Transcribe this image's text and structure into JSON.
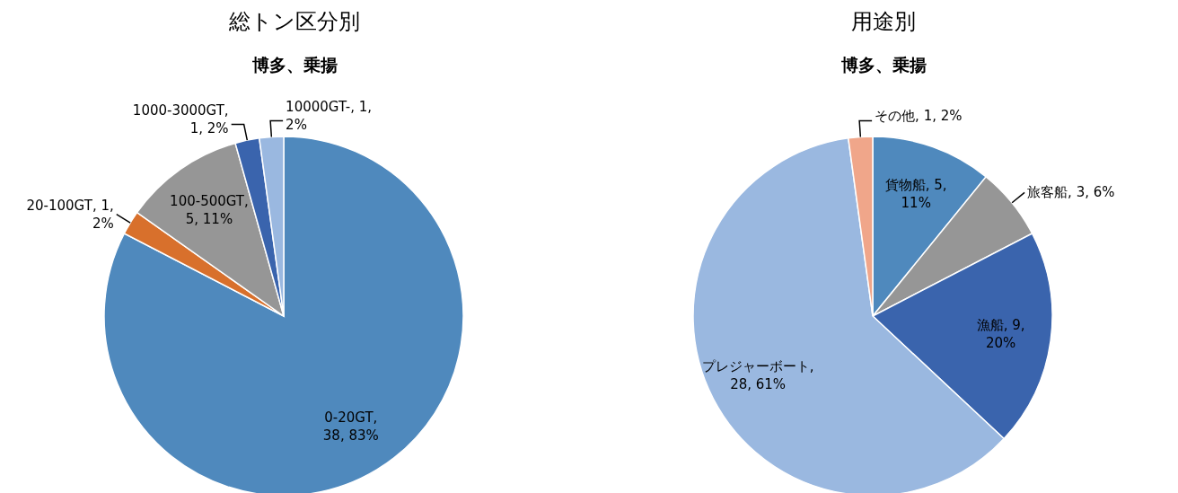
{
  "chart_data": [
    {
      "type": "pie",
      "title": "総トン区分別",
      "subtitle": "博多、乗揚",
      "categories": [
        "0-20GT",
        "20-100GT",
        "100-500GT",
        "1000-3000GT",
        "10000GT-"
      ],
      "values": [
        38,
        1,
        5,
        1,
        1
      ],
      "value_labels": [
        ", 38, 83%",
        ", 1, 2%",
        ", 5, 11%",
        ", 1, 2%",
        ", 1, 2%"
      ],
      "colors": [
        "#4f89bd",
        "#d8702c",
        "#969696",
        "#3a64ad",
        "#9ab8e0"
      ],
      "legend": false
    },
    {
      "type": "pie",
      "title": "用途別",
      "subtitle": "博多、乗揚",
      "categories": [
        "貨物船",
        "旅客船",
        "漁船",
        "プレジャーボート",
        "その他"
      ],
      "values": [
        5,
        3,
        9,
        28,
        1
      ],
      "value_labels": [
        ", 5, 11%",
        ", 3, 6%",
        ", 9, 20%",
        ", 28, 61%",
        ", 1, 2%"
      ],
      "colors": [
        "#4f89bd",
        "#969696",
        "#3a64ad",
        "#9ab8e0",
        "#f0a68a"
      ],
      "legend": false
    }
  ]
}
